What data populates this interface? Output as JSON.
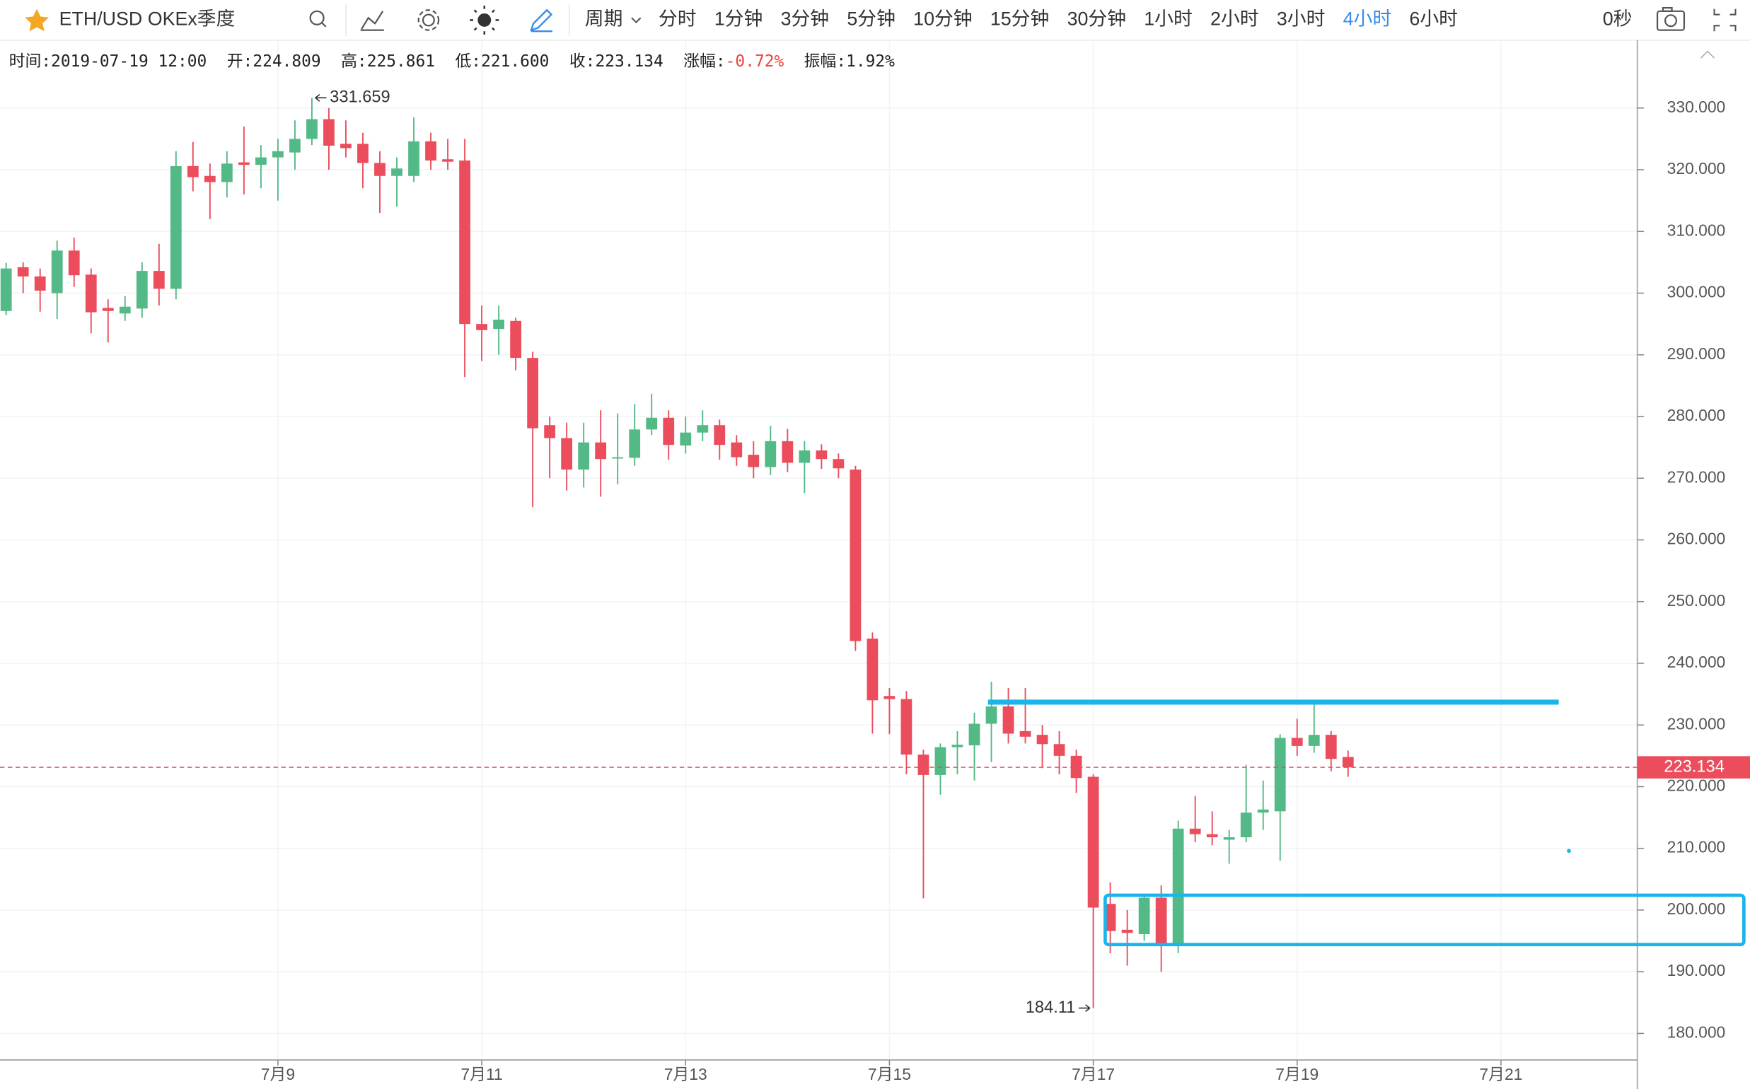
{
  "toolbar": {
    "symbol": "ETH/USD OKEx季度",
    "period_menu": "周期",
    "intervals": [
      "分时",
      "1分钟",
      "3分钟",
      "5分钟",
      "10分钟",
      "15分钟",
      "30分钟",
      "1小时",
      "2小时",
      "3小时",
      "4小时",
      "6小时"
    ],
    "active_interval": 10,
    "countdown": "0秒"
  },
  "info_bar": [
    {
      "label": "时间:",
      "value": "2019-07-19 12:00"
    },
    {
      "label": "开:",
      "value": "224.809"
    },
    {
      "label": "高:",
      "value": "225.861"
    },
    {
      "label": "低:",
      "value": "221.600"
    },
    {
      "label": "收:",
      "value": "223.134"
    },
    {
      "label": "涨幅:",
      "value": "-0.72%",
      "color": "#e8453c"
    },
    {
      "label": "振幅:",
      "value": "1.92%"
    }
  ],
  "chart_data": {
    "type": "candlestick",
    "categories": [
      null,
      null,
      null,
      null,
      null,
      null,
      null,
      null,
      null,
      null,
      null,
      null,
      null,
      null,
      null,
      null,
      "7月9",
      null,
      null,
      null,
      null,
      null,
      null,
      null,
      null,
      null,
      null,
      null,
      "7月11",
      null,
      null,
      null,
      null,
      null,
      null,
      null,
      null,
      null,
      null,
      null,
      "7月13",
      null,
      null,
      null,
      null,
      null,
      null,
      null,
      null,
      null,
      null,
      null,
      "7月15",
      null,
      null,
      null,
      null,
      null,
      null,
      null,
      null,
      null,
      null,
      null,
      "7月17",
      null,
      null,
      null,
      null,
      null,
      null,
      null,
      null,
      null,
      null,
      null,
      "7月19",
      null,
      null,
      null,
      null,
      null,
      null,
      null,
      null,
      null,
      null,
      null,
      "7月21",
      null,
      null,
      null,
      null,
      null,
      null,
      null
    ],
    "open": [
      297.1,
      304.2,
      302.7,
      300.0,
      306.9,
      303.0,
      297.6,
      296.7,
      297.5,
      303.6,
      300.7,
      320.6,
      319.0,
      318.0,
      321.2,
      320.8,
      322.0,
      322.8,
      325.0,
      328.2,
      324.2,
      324.2,
      321.1,
      319.0,
      319.0,
      324.6,
      321.7,
      321.5,
      295.0,
      294.2,
      295.5,
      289.5,
      278.6,
      276.5,
      271.4,
      275.8,
      273.2,
      273.3,
      277.9,
      279.8,
      275.3,
      277.4,
      278.6,
      275.8,
      273.8,
      271.8,
      276.0,
      272.5,
      274.5,
      273.1,
      271.4,
      244.0,
      234.7,
      234.2,
      225.2,
      221.9,
      226.4,
      226.7,
      230.2,
      233.0,
      229.0,
      228.4,
      226.9,
      225.0,
      221.6,
      201.0,
      196.8,
      196.1,
      202.0,
      194.6,
      213.2,
      212.3,
      211.4,
      211.8,
      215.8,
      216.0,
      227.9,
      226.6,
      228.4,
      224.809,
      null,
      null,
      null,
      null,
      null,
      null,
      null,
      null,
      null,
      null,
      null,
      null,
      null,
      null,
      null,
      null
    ],
    "high": [
      304.9,
      305,
      304,
      308.5,
      309,
      304,
      299,
      299.5,
      305,
      308,
      323,
      324.5,
      321,
      323,
      327,
      324,
      325,
      328,
      331.659,
      330,
      328,
      326,
      323,
      322,
      328.5,
      326,
      325,
      325,
      298,
      298,
      296,
      290.5,
      280,
      279,
      279,
      281,
      280.5,
      282,
      283.7,
      281,
      280,
      281,
      279.5,
      277,
      276,
      278.5,
      278,
      276,
      275.5,
      274,
      272,
      245,
      236,
      235.5,
      226,
      227,
      229,
      232,
      237,
      236,
      236,
      230,
      229,
      226,
      222,
      204.5,
      200,
      202.5,
      204,
      214.5,
      218.5,
      216,
      213,
      223.5,
      221,
      228.5,
      231,
      233.4,
      229,
      225.861,
      null,
      null,
      null,
      null,
      null,
      null,
      null,
      null,
      null,
      null,
      null,
      null,
      null,
      null,
      null,
      null
    ],
    "low": [
      296.4,
      300,
      297,
      295.8,
      301,
      293.5,
      292,
      295.5,
      296,
      298,
      299,
      316.5,
      312,
      315.5,
      316,
      317,
      315,
      320,
      324,
      320,
      322,
      317,
      313,
      314,
      318,
      320,
      320,
      286.4,
      289,
      290,
      287.5,
      265.3,
      270,
      268,
      268.5,
      267,
      269,
      272,
      277,
      273,
      274,
      276,
      273,
      272,
      270,
      270.5,
      271,
      267.6,
      271.5,
      270,
      242,
      228.6,
      228.5,
      222,
      201.9,
      218.7,
      222,
      221,
      224,
      227,
      227,
      223,
      222,
      219,
      184.11,
      193,
      191,
      195,
      190,
      193,
      211,
      210.5,
      207.5,
      211,
      213,
      208,
      225,
      225.5,
      222.5,
      221.6,
      null,
      null,
      null,
      null,
      null,
      null,
      null,
      null,
      null,
      null,
      null,
      null,
      null,
      null,
      null,
      null
    ],
    "close": [
      304.0,
      302.7,
      300.4,
      306.9,
      302.9,
      296.9,
      297.1,
      297.8,
      303.6,
      300.7,
      320.6,
      318.8,
      318.0,
      321.0,
      320.8,
      322.0,
      323.0,
      325.0,
      328.2,
      323.9,
      323.5,
      321.1,
      319.0,
      320.2,
      324.6,
      321.5,
      321.3,
      295.0,
      294.0,
      295.7,
      289.5,
      278.1,
      276.5,
      271.4,
      275.8,
      273.1,
      273.4,
      277.9,
      279.8,
      275.4,
      277.4,
      278.6,
      275.4,
      273.4,
      271.8,
      276.0,
      272.5,
      274.5,
      273.1,
      271.6,
      243.6,
      234.0,
      234.2,
      225.2,
      221.9,
      226.4,
      226.8,
      230.2,
      233.0,
      228.6,
      228.1,
      226.9,
      225.0,
      221.4,
      200.4,
      196.6,
      196.3,
      202.0,
      194.6,
      213.2,
      212.3,
      211.8,
      211.8,
      215.8,
      216.3,
      227.9,
      226.6,
      228.4,
      224.5,
      223.134,
      null,
      null,
      null,
      null,
      null,
      null,
      null,
      null,
      null,
      null,
      null,
      null,
      null,
      null,
      null,
      null
    ],
    "up_color": "#53b987",
    "down_color": "#eb4d5c",
    "ylim": [
      175.7,
      341.0
    ],
    "yticks": [
      {
        "value": 180,
        "label": "180.000"
      },
      {
        "value": 190,
        "label": "190.000"
      },
      {
        "value": 200,
        "label": "200.000"
      },
      {
        "value": 210,
        "label": "210.000"
      },
      {
        "value": 220,
        "label": "220.000"
      },
      {
        "value": 230,
        "label": "230.000"
      },
      {
        "value": 240,
        "label": "240.000"
      },
      {
        "value": 250,
        "label": "250.000"
      },
      {
        "value": 260,
        "label": "260.000"
      },
      {
        "value": 270,
        "label": "270.000"
      },
      {
        "value": 280,
        "label": "280.000"
      },
      {
        "value": 290,
        "label": "290.000"
      },
      {
        "value": 300,
        "label": "300.000"
      },
      {
        "value": 310,
        "label": "310.000"
      },
      {
        "value": 320,
        "label": "320.000"
      },
      {
        "value": 330,
        "label": "330.000"
      }
    ],
    "grid": true,
    "annotations": [
      {
        "at": 18,
        "field": "high",
        "side": "left"
      },
      {
        "at": 64,
        "field": "low",
        "side": "right"
      }
    ],
    "drawings": {
      "color": "#1cb5ea",
      "lines": [
        {
          "price": 233.7,
          "start": 57.8,
          "end": 91.4
        }
      ],
      "boxes": [
        {
          "top": 202.4,
          "bottom": 194.4,
          "start": 64.7,
          "end": 102.3
        }
      ],
      "points": [
        {
          "price": 209.6,
          "at": 92
        }
      ]
    }
  }
}
